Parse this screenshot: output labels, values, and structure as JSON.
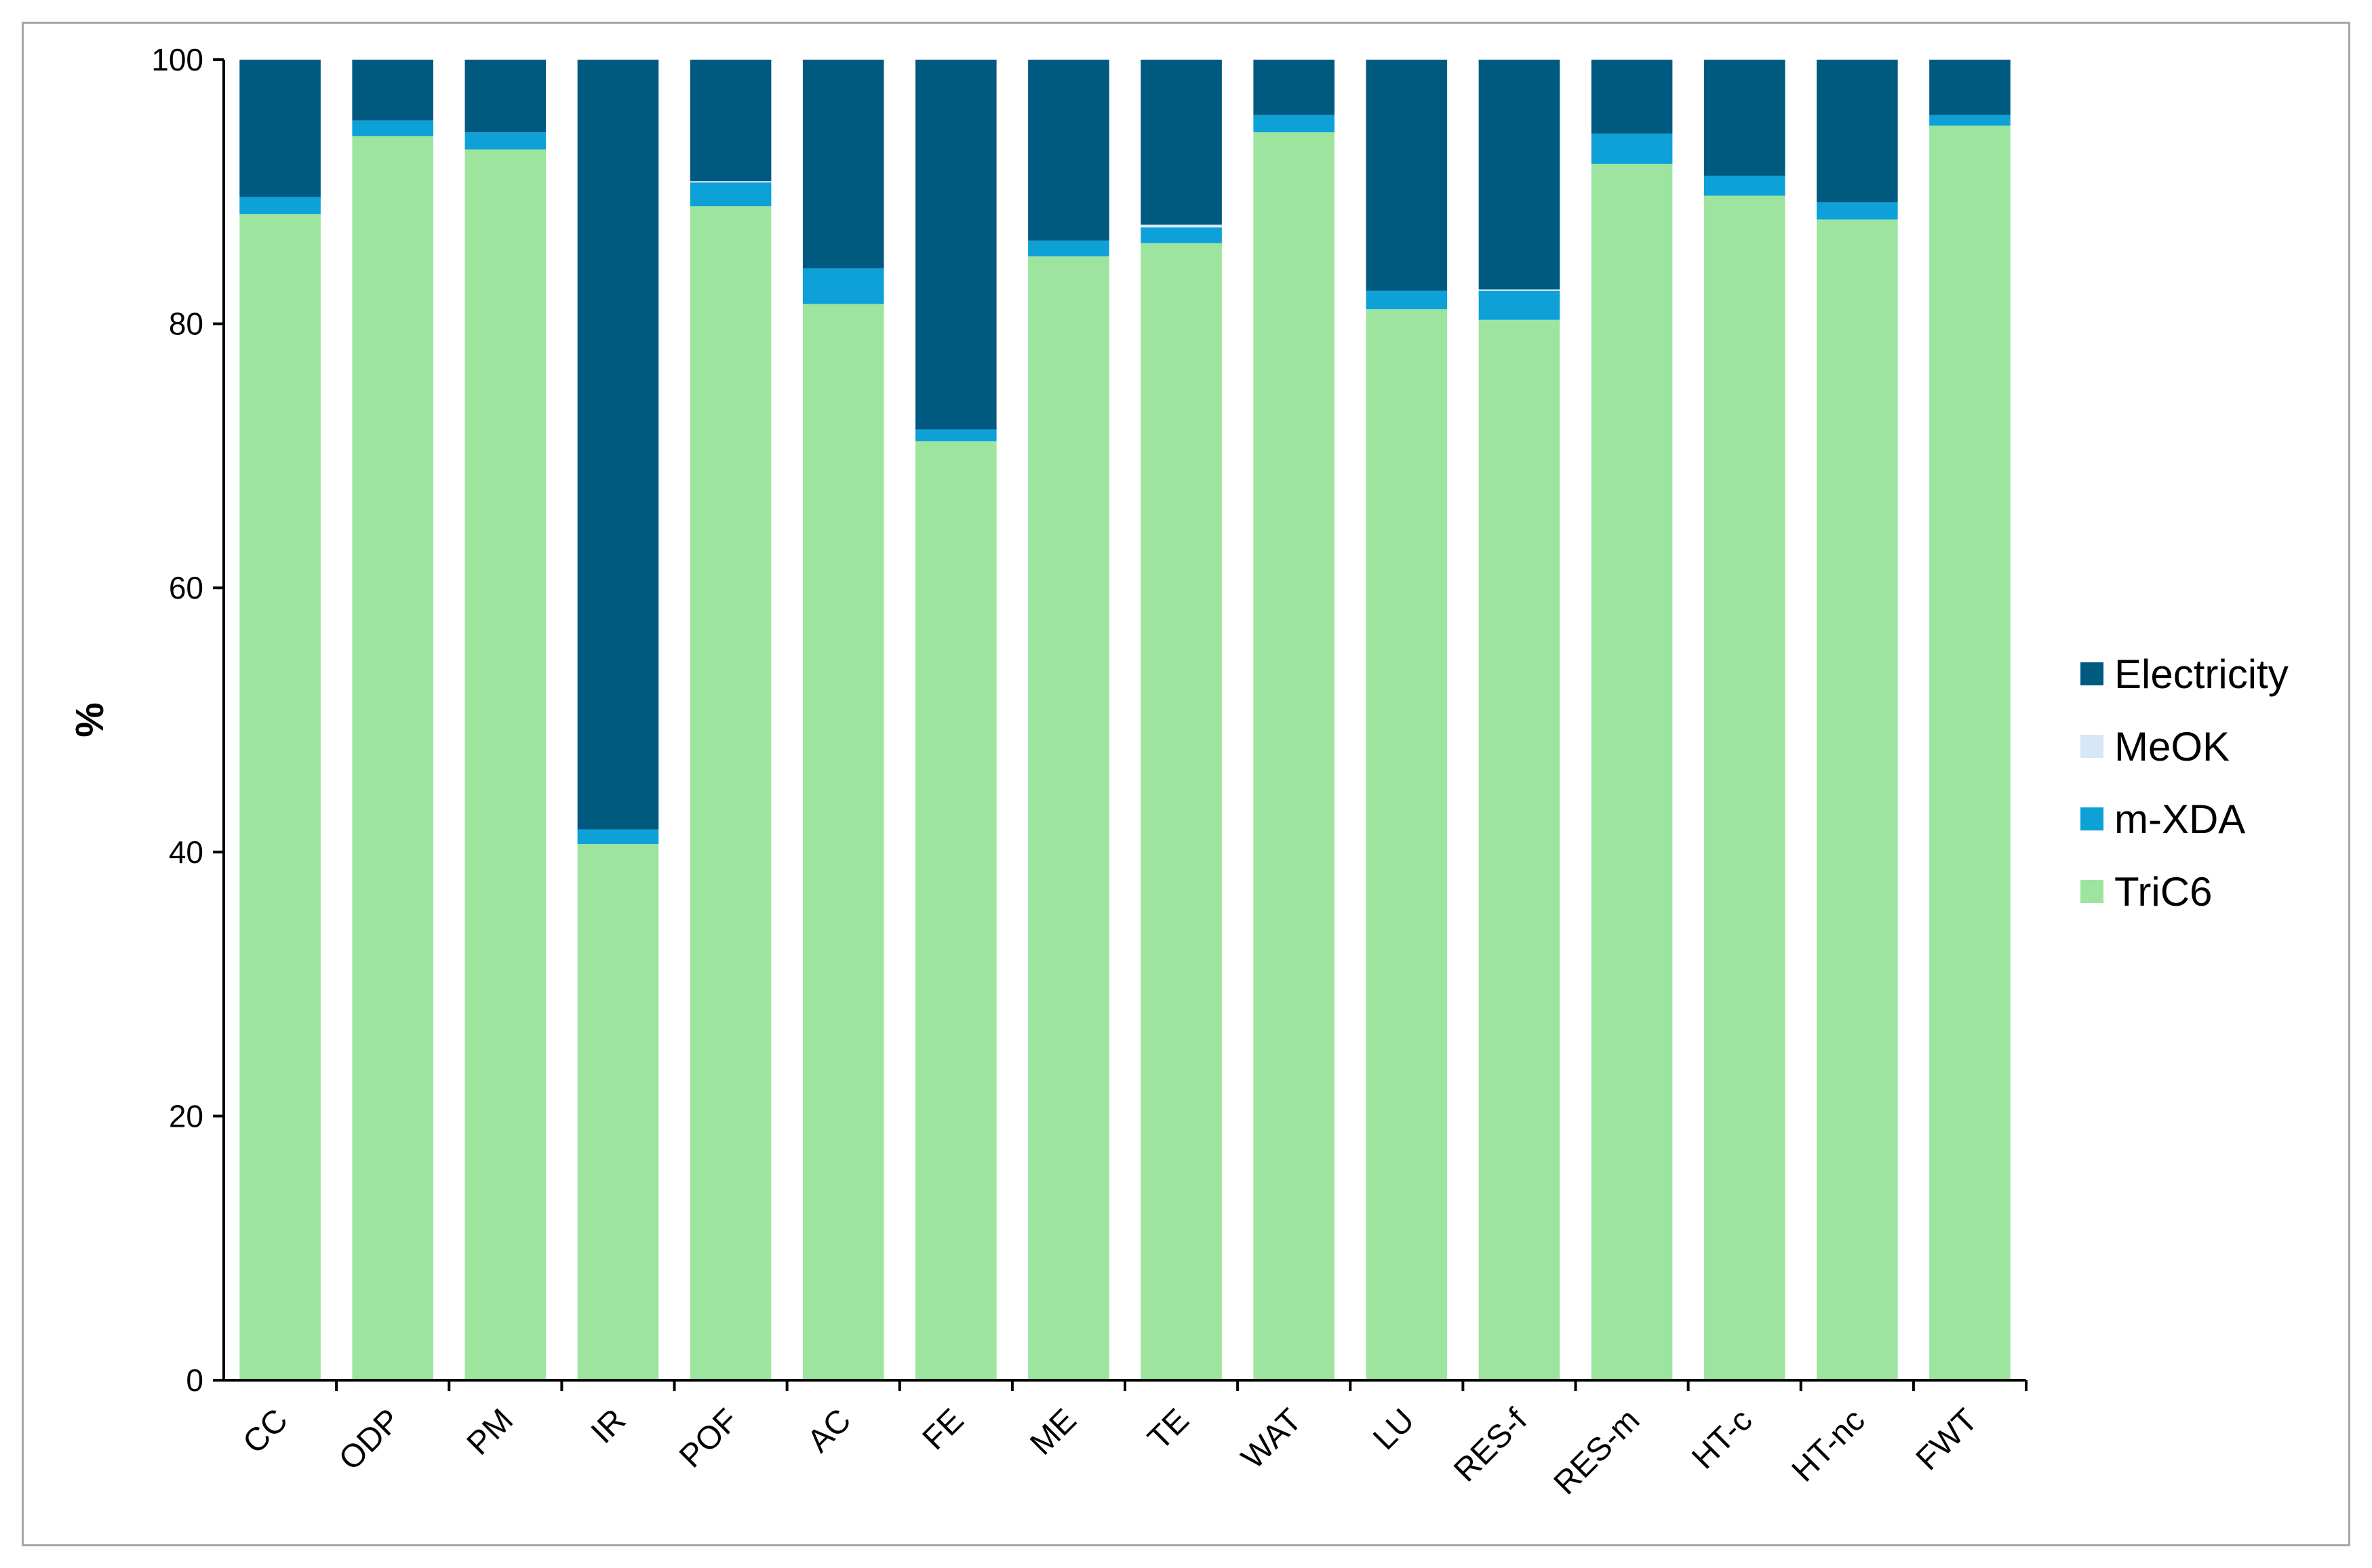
{
  "chart_data": {
    "type": "bar",
    "stacked": true,
    "title": "",
    "xlabel": "",
    "ylabel": "%",
    "ylim": [
      0,
      100
    ],
    "yticks": [
      0,
      20,
      40,
      60,
      80,
      100
    ],
    "grid": false,
    "legend_position": "right",
    "categories": [
      "CC",
      "ODP",
      "PM",
      "IR",
      "POF",
      "AC",
      "FE",
      "ME",
      "TE",
      "WAT",
      "LU",
      "RES-f",
      "RES-m",
      "HT-c",
      "HT-nc",
      "FWT"
    ],
    "series": [
      {
        "name": "TriC6",
        "color": "#9de59f",
        "values": [
          88.3,
          94.2,
          93.2,
          40.6,
          88.9,
          81.5,
          71.1,
          85.1,
          86.1,
          94.5,
          81.1,
          80.3,
          92.1,
          89.7,
          87.9,
          95.0
        ]
      },
      {
        "name": "m-XDA",
        "color": "#0ea1d8",
        "values": [
          1.3,
          1.2,
          1.3,
          1.1,
          1.8,
          2.7,
          0.9,
          1.2,
          1.2,
          1.3,
          1.4,
          2.2,
          2.3,
          1.5,
          1.3,
          0.8
        ]
      },
      {
        "name": "MeOK",
        "color": "#d6e8f7",
        "values": [
          0.0,
          0.0,
          0.0,
          0.0,
          0.1,
          0.0,
          0.0,
          0.0,
          0.2,
          0.0,
          0.0,
          0.1,
          0.0,
          0.0,
          0.0,
          0.0
        ]
      },
      {
        "name": "Electricity",
        "color": "#005a80",
        "values": [
          10.4,
          4.6,
          5.5,
          58.3,
          9.2,
          15.8,
          28.0,
          13.7,
          12.5,
          4.2,
          17.5,
          17.4,
          5.6,
          8.8,
          10.8,
          4.2
        ]
      }
    ],
    "legend_order": [
      "Electricity",
      "MeOK",
      "m-XDA",
      "TriC6"
    ]
  }
}
